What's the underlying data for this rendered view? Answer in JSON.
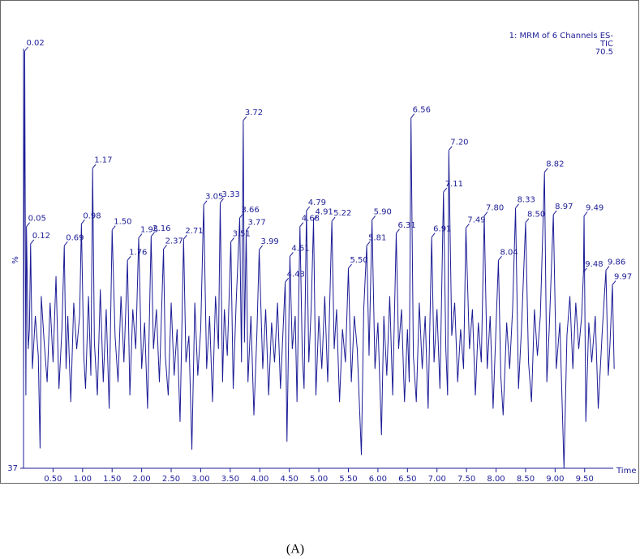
{
  "chart_data": {
    "type": "line",
    "header": [
      "1: MRM of 6 Channels ES-",
      "TIC"
    ],
    "header_value": 70.5,
    "ylabel": "%",
    "xlabel": "Time",
    "caption": "(A)",
    "xlim": [
      0,
      10.08
    ],
    "ylim": [
      37,
      100
    ],
    "yticks": [
      37
    ],
    "xticks": [
      {
        "value": 0.5,
        "label": "0.50"
      },
      {
        "value": 1,
        "label": "1.00"
      },
      {
        "value": 1.5,
        "label": "1.50"
      },
      {
        "value": 2,
        "label": "2.00"
      },
      {
        "value": 2.5,
        "label": "2.50"
      },
      {
        "value": 3,
        "label": "3.00"
      },
      {
        "value": 3.5,
        "label": "3.50"
      },
      {
        "value": 4,
        "label": "4.00"
      },
      {
        "value": 4.5,
        "label": "4.50"
      },
      {
        "value": 5,
        "label": "5.00"
      },
      {
        "value": 5.5,
        "label": "5.50"
      },
      {
        "value": 6,
        "label": "6.00"
      },
      {
        "value": 6.5,
        "label": "6.50"
      },
      {
        "value": 7,
        "label": "7.00"
      },
      {
        "value": 7.5,
        "label": "7.50"
      },
      {
        "value": 8,
        "label": "8.00"
      },
      {
        "value": 8.5,
        "label": "8.50"
      },
      {
        "value": 9,
        "label": "9.00"
      },
      {
        "value": 9.5,
        "label": "9.50"
      }
    ],
    "series": [
      {
        "color": "#1c1c96",
        "x": [
          0.0,
          0.02,
          0.04,
          0.05,
          0.08,
          0.1,
          0.12,
          0.15,
          0.2,
          0.25,
          0.28,
          0.3,
          0.35,
          0.4,
          0.45,
          0.5,
          0.55,
          0.6,
          0.65,
          0.69,
          0.72,
          0.75,
          0.8,
          0.85,
          0.9,
          0.95,
          0.98,
          1.02,
          1.05,
          1.1,
          1.14,
          1.17,
          1.2,
          1.25,
          1.3,
          1.35,
          1.4,
          1.45,
          1.5,
          1.55,
          1.6,
          1.65,
          1.7,
          1.76,
          1.8,
          1.85,
          1.9,
          1.95,
          2.0,
          2.05,
          2.1,
          2.16,
          2.2,
          2.25,
          2.3,
          2.37,
          2.4,
          2.45,
          2.5,
          2.55,
          2.6,
          2.65,
          2.71,
          2.75,
          2.8,
          2.85,
          2.9,
          2.95,
          3.0,
          3.05,
          3.1,
          3.15,
          3.2,
          3.25,
          3.3,
          3.33,
          3.37,
          3.4,
          3.45,
          3.51,
          3.55,
          3.6,
          3.66,
          3.69,
          3.72,
          3.74,
          3.77,
          3.8,
          3.85,
          3.9,
          3.95,
          3.99,
          4.05,
          4.1,
          4.15,
          4.2,
          4.25,
          4.3,
          4.35,
          4.43,
          4.46,
          4.51,
          4.55,
          4.6,
          4.63,
          4.68,
          4.72,
          4.75,
          4.79,
          4.83,
          4.87,
          4.91,
          4.95,
          5.0,
          5.05,
          5.1,
          5.15,
          5.22,
          5.26,
          5.3,
          5.35,
          5.4,
          5.45,
          5.5,
          5.55,
          5.6,
          5.65,
          5.72,
          5.76,
          5.81,
          5.85,
          5.9,
          5.95,
          6.0,
          6.06,
          6.1,
          6.15,
          6.2,
          6.25,
          6.31,
          6.35,
          6.4,
          6.45,
          6.5,
          6.53,
          6.56,
          6.6,
          6.65,
          6.7,
          6.75,
          6.8,
          6.85,
          6.91,
          6.95,
          7.0,
          7.05,
          7.11,
          7.15,
          7.18,
          7.2,
          7.25,
          7.3,
          7.35,
          7.4,
          7.45,
          7.49,
          7.55,
          7.6,
          7.65,
          7.7,
          7.75,
          7.8,
          7.85,
          7.9,
          7.95,
          8.04,
          8.08,
          8.12,
          8.18,
          8.23,
          8.28,
          8.33,
          8.38,
          8.43,
          8.5,
          8.55,
          8.6,
          8.65,
          8.7,
          8.75,
          8.82,
          8.86,
          8.9,
          8.97,
          9.02,
          9.08,
          9.15,
          9.2,
          9.25,
          9.3,
          9.35,
          9.4,
          9.45,
          9.48,
          9.49,
          9.52,
          9.57,
          9.62,
          9.68,
          9.73,
          9.8,
          9.86,
          9.9,
          9.93,
          9.97,
          10.0
        ],
        "values": [
          50,
          100,
          48,
          73.5,
          55,
          58,
          70.9,
          52,
          60,
          54,
          40,
          63,
          56,
          50,
          62,
          53,
          66,
          49,
          58,
          70.6,
          52,
          60,
          47,
          62,
          55,
          60,
          73.9,
          54,
          49,
          63,
          51,
          82.3,
          56,
          48,
          64,
          50,
          61,
          46,
          73,
          57,
          50,
          63,
          53,
          68.4,
          48,
          61,
          55,
          71.8,
          52,
          59,
          46,
          72,
          55,
          61,
          50,
          70.1,
          54,
          48,
          62,
          51,
          58,
          44,
          71.6,
          53,
          57,
          39.8,
          62,
          51,
          58,
          76.8,
          52,
          60,
          47,
          63,
          55,
          77.1,
          50,
          61,
          54,
          71.2,
          49,
          62,
          74.8,
          53,
          89.5,
          56,
          72.9,
          50,
          60,
          45,
          57,
          70,
          52,
          61,
          48,
          59,
          53,
          62,
          49,
          65.1,
          41,
          69,
          55,
          60,
          47,
          73.5,
          54,
          49,
          75.9,
          53,
          61,
          74.5,
          48,
          60,
          52,
          63,
          50,
          74.3,
          55,
          61,
          47,
          58,
          53,
          67.2,
          50,
          60,
          55,
          39,
          61,
          70.6,
          54,
          74.5,
          52,
          59,
          42,
          60,
          51,
          63,
          48,
          72.5,
          55,
          61,
          47,
          58,
          50,
          89.9,
          54,
          47,
          62,
          52,
          60,
          46,
          71.9,
          53,
          61,
          49,
          78.7,
          55,
          48,
          85,
          57,
          62,
          50,
          58,
          52,
          73.3,
          55,
          61,
          48,
          59,
          53,
          75.1,
          52,
          60,
          46,
          68.4,
          51,
          45,
          59,
          52,
          61,
          76.3,
          49,
          58,
          74.1,
          53,
          47,
          61,
          54,
          60,
          81.7,
          50,
          58,
          75.3,
          52,
          59,
          37,
          57,
          63,
          52,
          62,
          55,
          60,
          66.6,
          75.1,
          44,
          59,
          53,
          60,
          46,
          58,
          66.9,
          51,
          56,
          64.7,
          52
        ],
        "labels": [
          null,
          "0.02",
          null,
          "0.05",
          null,
          null,
          "0.12",
          null,
          null,
          null,
          null,
          null,
          null,
          null,
          null,
          null,
          null,
          null,
          null,
          "0.69",
          null,
          null,
          null,
          null,
          null,
          null,
          "0.98",
          null,
          null,
          null,
          null,
          "1.17",
          null,
          null,
          null,
          null,
          null,
          null,
          "1.50",
          null,
          null,
          null,
          null,
          "1.76",
          null,
          null,
          null,
          "1.95",
          null,
          null,
          null,
          "2.16",
          null,
          null,
          null,
          "2.37",
          null,
          null,
          null,
          null,
          null,
          null,
          "2.71",
          null,
          null,
          null,
          null,
          null,
          null,
          "3.05",
          null,
          null,
          null,
          null,
          null,
          "3.33",
          null,
          null,
          null,
          "3.51",
          null,
          null,
          "3.66",
          null,
          "3.72",
          null,
          "3.77",
          null,
          null,
          null,
          null,
          "3.99",
          null,
          null,
          null,
          null,
          null,
          null,
          null,
          "4.43",
          null,
          "4.51",
          null,
          null,
          null,
          "4.68",
          null,
          null,
          "4.79",
          null,
          null,
          "4.91",
          null,
          null,
          null,
          null,
          null,
          "5.22",
          null,
          null,
          null,
          null,
          null,
          "5.50",
          null,
          null,
          null,
          null,
          null,
          "5.81",
          null,
          "5.90",
          null,
          null,
          null,
          null,
          null,
          null,
          null,
          "6.31",
          null,
          null,
          null,
          null,
          null,
          "6.56",
          null,
          null,
          null,
          null,
          null,
          null,
          "6.91",
          null,
          null,
          null,
          "7.11",
          null,
          null,
          "7.20",
          null,
          null,
          null,
          null,
          null,
          "7.49",
          null,
          null,
          null,
          null,
          null,
          "7.80",
          null,
          null,
          null,
          "8.04",
          null,
          null,
          null,
          null,
          null,
          "8.33",
          null,
          null,
          "8.50",
          null,
          null,
          null,
          null,
          null,
          "8.82",
          null,
          null,
          "8.97",
          null,
          null,
          null,
          null,
          null,
          null,
          null,
          null,
          null,
          "9.48",
          "9.49",
          null,
          null,
          null,
          null,
          null,
          null,
          "9.86",
          null,
          null,
          "9.97",
          null
        ]
      }
    ]
  }
}
